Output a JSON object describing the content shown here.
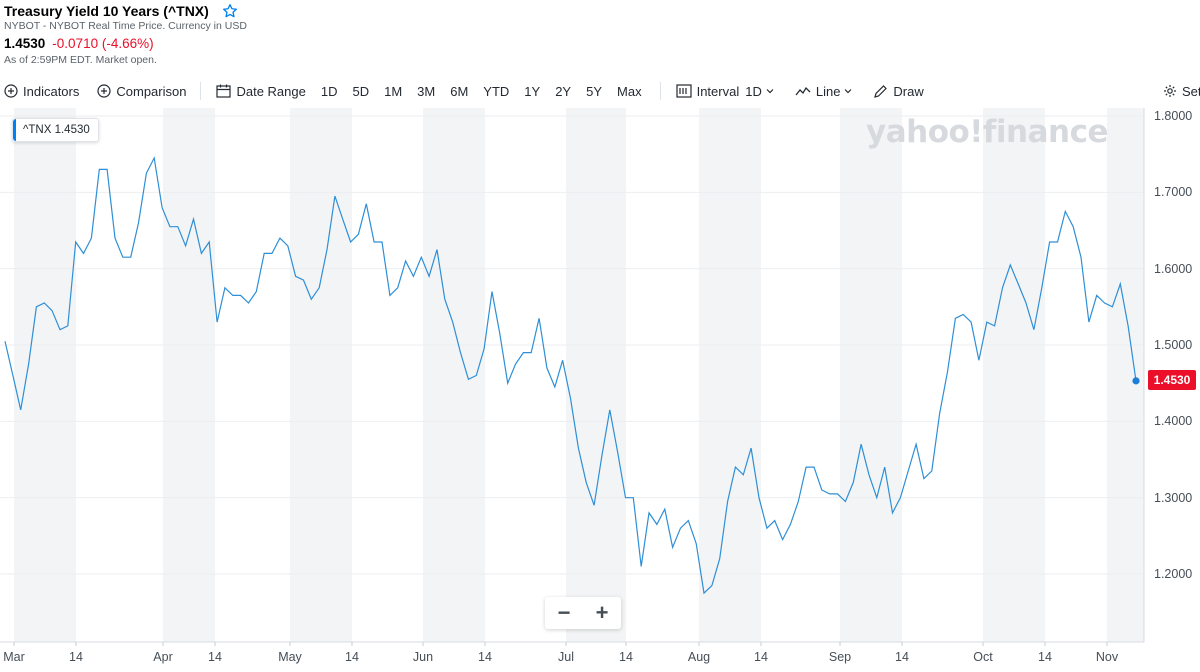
{
  "header": {
    "title": "Treasury Yield 10 Years (^TNX)",
    "subtitle": "NYBOT - NYBOT Real Time Price. Currency in USD",
    "price": "1.4530",
    "change": "-0.0710 (-4.66%)",
    "as_of": "As of 2:59PM EDT. Market open."
  },
  "toolbar": {
    "indicators": "Indicators",
    "comparison": "Comparison",
    "date_range": "Date Range",
    "ranges": [
      "1D",
      "5D",
      "1M",
      "3M",
      "6M",
      "YTD",
      "1Y",
      "2Y",
      "5Y",
      "Max"
    ],
    "interval_label": "Interval",
    "interval_value": "1D",
    "line": "Line",
    "draw": "Draw",
    "settings": "Settings"
  },
  "legend": {
    "label": "^TNX 1.4530"
  },
  "price_tag": "1.4530",
  "watermark": "yahoo!finance",
  "zoom": {
    "minus": "−",
    "plus": "+"
  },
  "colors": {
    "line": "#2e8fd6",
    "accent": "#0081f2",
    "negative": "#eb0f29",
    "band": "#f3f4f5"
  },
  "chart_data": {
    "type": "line",
    "series": [
      {
        "name": "^TNX",
        "values": [
          1.505,
          1.46,
          1.415,
          1.475,
          1.55,
          1.555,
          1.545,
          1.52,
          1.525,
          1.635,
          1.62,
          1.64,
          1.73,
          1.73,
          1.64,
          1.615,
          1.615,
          1.66,
          1.725,
          1.745,
          1.68,
          1.655,
          1.655,
          1.63,
          1.665,
          1.62,
          1.635,
          1.53,
          1.575,
          1.565,
          1.565,
          1.555,
          1.57,
          1.62,
          1.62,
          1.64,
          1.63,
          1.59,
          1.585,
          1.56,
          1.575,
          1.625,
          1.695,
          1.665,
          1.635,
          1.645,
          1.685,
          1.635,
          1.635,
          1.565,
          1.575,
          1.61,
          1.59,
          1.615,
          1.59,
          1.625,
          1.56,
          1.53,
          1.49,
          1.455,
          1.46,
          1.495,
          1.57,
          1.515,
          1.45,
          1.475,
          1.49,
          1.49,
          1.535,
          1.47,
          1.445,
          1.48,
          1.43,
          1.365,
          1.32,
          1.29,
          1.355,
          1.415,
          1.36,
          1.3,
          1.3,
          1.21,
          1.28,
          1.265,
          1.285,
          1.235,
          1.26,
          1.27,
          1.24,
          1.175,
          1.185,
          1.22,
          1.295,
          1.34,
          1.33,
          1.365,
          1.3,
          1.26,
          1.27,
          1.245,
          1.265,
          1.295,
          1.34,
          1.34,
          1.31,
          1.305,
          1.305,
          1.295,
          1.32,
          1.37,
          1.33,
          1.3,
          1.34,
          1.28,
          1.3,
          1.335,
          1.37,
          1.325,
          1.335,
          1.41,
          1.465,
          1.535,
          1.54,
          1.53,
          1.48,
          1.53,
          1.525,
          1.575,
          1.605,
          1.58,
          1.555,
          1.52,
          1.575,
          1.635,
          1.635,
          1.675,
          1.655,
          1.615,
          1.53,
          1.565,
          1.555,
          1.55,
          1.58,
          1.525,
          1.453
        ]
      }
    ],
    "x_ticks": [
      "Mar",
      "14",
      "Apr",
      "14",
      "May",
      "14",
      "Jun",
      "14",
      "Jul",
      "14",
      "Aug",
      "14",
      "Sep",
      "14",
      "Oct",
      "14",
      "Nov"
    ],
    "y_ticks": [
      "1.8000",
      "1.7000",
      "1.6000",
      "1.5000",
      "1.4000",
      "1.3000",
      "1.2000"
    ],
    "ylim": [
      1.1,
      1.8
    ],
    "grid": true
  }
}
